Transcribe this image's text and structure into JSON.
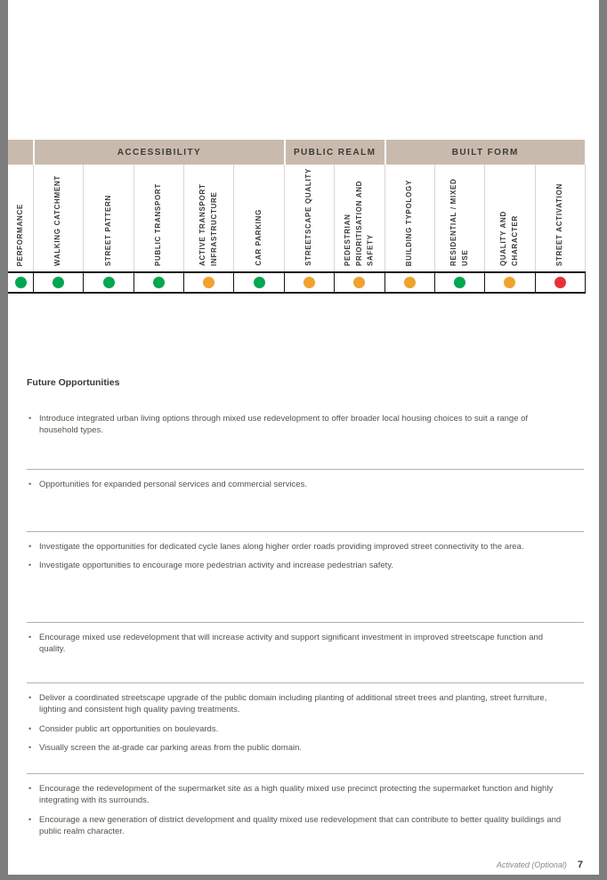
{
  "table": {
    "categories": [
      {
        "label": "",
        "span": 1
      },
      {
        "label": "ACCESSIBILITY",
        "span": 5
      },
      {
        "label": "PUBLIC REALM",
        "span": 2
      },
      {
        "label": "BUILT FORM",
        "span": 4
      }
    ],
    "columns": [
      {
        "label": "PERFORMANCE",
        "status": "green"
      },
      {
        "label": "WALKING CATCHMENT",
        "status": "green"
      },
      {
        "label": "STREET PATTERN",
        "status": "green"
      },
      {
        "label": "PUBLIC TRANSPORT",
        "status": "green"
      },
      {
        "label": "ACTIVE TRANSPORT INFRASTRUCTURE",
        "status": "amber"
      },
      {
        "label": "CAR PARKING",
        "status": "green"
      },
      {
        "label": "STREETSCAPE QUALITY",
        "status": "amber"
      },
      {
        "label": "PEDESTRIAN PRIORITISATION AND SAFETY",
        "status": "amber"
      },
      {
        "label": "BUILDING TYPOLOGY",
        "status": "amber"
      },
      {
        "label": "RESIDENTIAL / MIXED USE",
        "status": "green"
      },
      {
        "label": "QUALITY AND CHARACTER",
        "status": "amber"
      },
      {
        "label": "STREET ACTIVATION",
        "status": "red"
      }
    ],
    "status_colors": {
      "green": "#00a651",
      "amber": "#f0a22e",
      "red": "#e5313a"
    }
  },
  "content": {
    "heading": "Future Opportunities",
    "sections": [
      {
        "bullets": [
          "Introduce integrated urban living options through mixed use redevelopment to offer broader local housing choices to suit a range of household types."
        ]
      },
      {
        "bullets": [
          "Opportunities for expanded personal services and commercial services."
        ]
      },
      {
        "bullets": [
          "Investigate the opportunities for dedicated cycle lanes along higher order roads providing improved street connectivity to the area.",
          "Investigate opportunities to encourage more pedestrian activity and increase pedestrian safety."
        ]
      },
      {
        "bullets": [
          "Encourage mixed use redevelopment that will increase activity and support significant investment in improved streetscape function and quality."
        ]
      },
      {
        "bullets": [
          "Deliver a coordinated streetscape upgrade of the public domain including planting of additional street trees and planting, street furniture, lighting and consistent high quality paving treatments.",
          "Consider public art opportunities on boulevards.",
          "Visually screen the at-grade car parking areas from the public domain."
        ]
      },
      {
        "bullets": [
          "Encourage the redevelopment of the supermarket site as a high quality mixed use precinct protecting the supermarket function and highly integrating with its surrounds.",
          "Encourage a new generation of district development and quality mixed use redevelopment that can contribute to better quality buildings and public realm character."
        ]
      }
    ]
  },
  "footer": {
    "label": "Activated (Optional)",
    "page": "7"
  }
}
